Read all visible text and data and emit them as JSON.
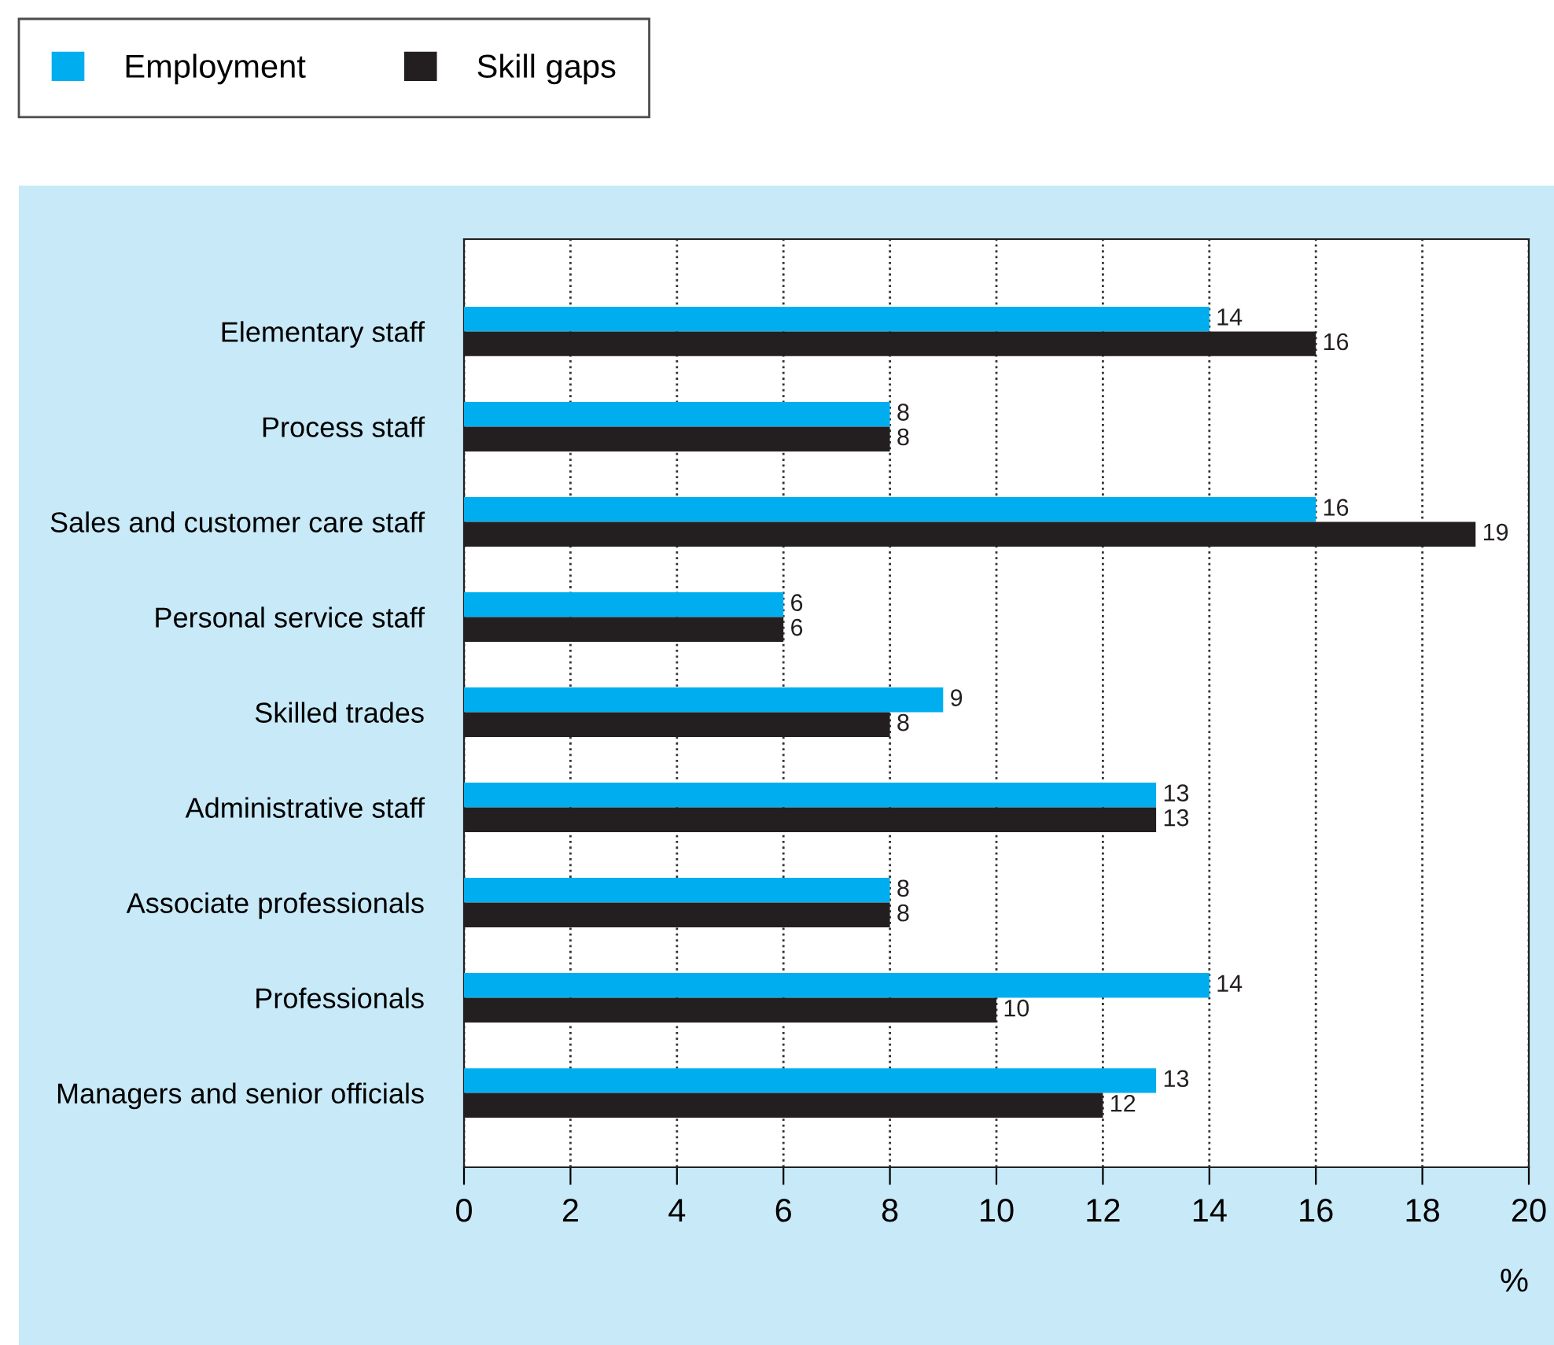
{
  "chart_data": {
    "type": "bar",
    "orientation": "horizontal",
    "xlabel": "%",
    "categories": [
      "Elementary staff",
      "Process staff",
      "Sales and customer care staff",
      "Personal service staff",
      "Skilled trades",
      "Administrative staff",
      "Associate professionals",
      "Professionals",
      "Managers and senior officials"
    ],
    "series": [
      {
        "name": "Employment",
        "color": "#00aeef",
        "values": [
          14,
          8,
          16,
          6,
          9,
          13,
          8,
          14,
          13
        ]
      },
      {
        "name": "Skill gaps",
        "color": "#231f20",
        "values": [
          16,
          8,
          19,
          6,
          8,
          13,
          8,
          10,
          12
        ]
      }
    ],
    "xlim": [
      0,
      20
    ],
    "xticks": [
      0,
      2,
      4,
      6,
      8,
      10,
      12,
      14,
      16,
      18,
      20
    ],
    "grid": "x",
    "legend": "top left",
    "data_labels": true
  }
}
